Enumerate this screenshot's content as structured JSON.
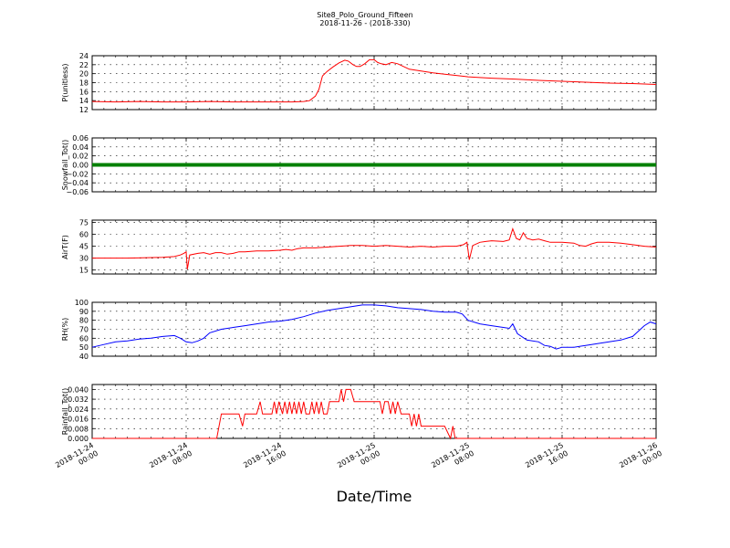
{
  "chart_data": {
    "type": "line",
    "title": "Site8_Polo_Ground_Fifteen",
    "subtitle": "2018-11-26 - (2018-330)",
    "xlabel": "Date/Time",
    "x_ticks": [
      "2018-11-24\n00:00",
      "2018-11-24\n08:00",
      "2018-11-24\n16:00",
      "2018-11-25\n00:00",
      "2018-11-25\n08:00",
      "2018-11-25\n16:00",
      "2018-11-26\n00:00"
    ],
    "x_range_hours": [
      0,
      48
    ],
    "grid": true,
    "panels": [
      {
        "ylabel": "P(unitless)",
        "ylim": [
          12,
          24
        ],
        "yticks": [
          "12",
          "14",
          "16",
          "18",
          "20",
          "22",
          "24"
        ],
        "color": "#ff0000",
        "series": [
          [
            0,
            13.8
          ],
          [
            2,
            13.7
          ],
          [
            4,
            13.8
          ],
          [
            6,
            13.7
          ],
          [
            8,
            13.7
          ],
          [
            10,
            13.8
          ],
          [
            12,
            13.7
          ],
          [
            14,
            13.7
          ],
          [
            16,
            13.7
          ],
          [
            17,
            13.7
          ],
          [
            18,
            13.8
          ],
          [
            18.5,
            14.0
          ],
          [
            19,
            15.0
          ],
          [
            19.3,
            16.5
          ],
          [
            19.6,
            19.5
          ],
          [
            20,
            20.5
          ],
          [
            20.5,
            21.5
          ],
          [
            21,
            22.4
          ],
          [
            21.5,
            23.0
          ],
          [
            21.8,
            22.8
          ],
          [
            22.2,
            22.0
          ],
          [
            22.5,
            21.6
          ],
          [
            22.8,
            21.6
          ],
          [
            23.2,
            22.2
          ],
          [
            23.6,
            23.1
          ],
          [
            24,
            23.1
          ],
          [
            24.3,
            22.5
          ],
          [
            24.6,
            22.2
          ],
          [
            25,
            22.0
          ],
          [
            25.5,
            22.5
          ],
          [
            26,
            22.2
          ],
          [
            26.5,
            21.6
          ],
          [
            27,
            21.0
          ],
          [
            28,
            20.6
          ],
          [
            29,
            20.2
          ],
          [
            30,
            19.9
          ],
          [
            31,
            19.6
          ],
          [
            32,
            19.3
          ],
          [
            34,
            19.0
          ],
          [
            36,
            18.8
          ],
          [
            38,
            18.5
          ],
          [
            40,
            18.3
          ],
          [
            42,
            18.1
          ],
          [
            44,
            17.9
          ],
          [
            46,
            17.8
          ],
          [
            48,
            17.6
          ]
        ]
      },
      {
        "ylabel": "Snowfall_Tot()",
        "ylim": [
          -0.06,
          0.06
        ],
        "yticks": [
          "−0.06",
          "−0.04",
          "−0.02",
          "0.00",
          "0.02",
          "0.04",
          "0.06"
        ],
        "color": "#008000",
        "series": [
          [
            0,
            0
          ],
          [
            48,
            0
          ]
        ]
      },
      {
        "ylabel": "AirT(F)",
        "ylim": [
          10,
          78
        ],
        "yticks": [
          "15",
          "30",
          "45",
          "60",
          "75"
        ],
        "color": "#ff0000",
        "series": [
          [
            0,
            30
          ],
          [
            3,
            30
          ],
          [
            6,
            31
          ],
          [
            7,
            32
          ],
          [
            7.5,
            34
          ],
          [
            7.8,
            36
          ],
          [
            8,
            38
          ],
          [
            8.1,
            16
          ],
          [
            8.3,
            34
          ],
          [
            9,
            36
          ],
          [
            9.5,
            37
          ],
          [
            10,
            35
          ],
          [
            10.5,
            37
          ],
          [
            11,
            37
          ],
          [
            11.5,
            35
          ],
          [
            12,
            36
          ],
          [
            12.5,
            38
          ],
          [
            13,
            38
          ],
          [
            14,
            39
          ],
          [
            15,
            39
          ],
          [
            16,
            40
          ],
          [
            16.5,
            41
          ],
          [
            17,
            40
          ],
          [
            17.5,
            42
          ],
          [
            18,
            43
          ],
          [
            19,
            43
          ],
          [
            20,
            44
          ],
          [
            21,
            45
          ],
          [
            22,
            46
          ],
          [
            23,
            46
          ],
          [
            24,
            45
          ],
          [
            25,
            46
          ],
          [
            26,
            45
          ],
          [
            27,
            44
          ],
          [
            28,
            45
          ],
          [
            29,
            44
          ],
          [
            30,
            45
          ],
          [
            31,
            45
          ],
          [
            31.6,
            47
          ],
          [
            31.9,
            50
          ],
          [
            32.1,
            28
          ],
          [
            32.4,
            46
          ],
          [
            33,
            50
          ],
          [
            33.5,
            51
          ],
          [
            34,
            52
          ],
          [
            35,
            51
          ],
          [
            35.5,
            53
          ],
          [
            35.8,
            67
          ],
          [
            36.1,
            55
          ],
          [
            36.4,
            53
          ],
          [
            36.7,
            62
          ],
          [
            37,
            55
          ],
          [
            37.5,
            53
          ],
          [
            38,
            54
          ],
          [
            38.5,
            52
          ],
          [
            39,
            50
          ],
          [
            40,
            50
          ],
          [
            41,
            49
          ],
          [
            41.5,
            46
          ],
          [
            42,
            45
          ],
          [
            42.5,
            48
          ],
          [
            43,
            50
          ],
          [
            44,
            50
          ],
          [
            45,
            49
          ],
          [
            46,
            47
          ],
          [
            47,
            45
          ],
          [
            48,
            44
          ]
        ]
      },
      {
        "ylabel": "RH(%)",
        "ylim": [
          40,
          100
        ],
        "yticks": [
          "40",
          "50",
          "60",
          "70",
          "80",
          "90",
          "100"
        ],
        "color": "#0000ff",
        "series": [
          [
            0,
            50
          ],
          [
            1,
            53
          ],
          [
            2,
            56
          ],
          [
            3,
            57
          ],
          [
            4,
            59
          ],
          [
            5,
            60
          ],
          [
            6,
            62
          ],
          [
            7,
            63
          ],
          [
            7.5,
            60
          ],
          [
            8,
            56
          ],
          [
            8.5,
            55
          ],
          [
            9,
            57
          ],
          [
            9.5,
            60
          ],
          [
            10,
            66
          ],
          [
            11,
            70
          ],
          [
            12,
            72
          ],
          [
            13,
            74
          ],
          [
            14,
            76
          ],
          [
            15,
            78
          ],
          [
            16,
            79
          ],
          [
            17,
            81
          ],
          [
            18,
            84
          ],
          [
            19,
            88
          ],
          [
            20,
            91
          ],
          [
            21,
            93
          ],
          [
            22,
            95
          ],
          [
            23,
            97
          ],
          [
            24,
            97
          ],
          [
            25,
            96
          ],
          [
            26,
            94
          ],
          [
            27,
            93
          ],
          [
            28,
            92
          ],
          [
            29,
            90
          ],
          [
            30,
            89
          ],
          [
            31,
            89
          ],
          [
            31.5,
            87
          ],
          [
            32,
            80
          ],
          [
            33,
            76
          ],
          [
            34,
            74
          ],
          [
            35,
            72
          ],
          [
            35.5,
            71
          ],
          [
            35.8,
            76
          ],
          [
            36.2,
            65
          ],
          [
            37,
            58
          ],
          [
            38,
            56
          ],
          [
            38.5,
            52
          ],
          [
            39,
            51
          ],
          [
            39.5,
            48
          ],
          [
            40,
            50
          ],
          [
            41,
            50
          ],
          [
            42,
            52
          ],
          [
            43,
            54
          ],
          [
            44,
            56
          ],
          [
            45,
            58
          ],
          [
            46,
            62
          ],
          [
            46.5,
            68
          ],
          [
            47,
            74
          ],
          [
            47.5,
            78
          ],
          [
            48,
            76
          ]
        ]
      },
      {
        "ylabel": "Rainfall_Tot()",
        "ylim": [
          0,
          0.044
        ],
        "yticks": [
          "0.000",
          "0.008",
          "0.016",
          "0.024",
          "0.032",
          "0.040"
        ],
        "color": "#ff0000",
        "series": [
          [
            0,
            0
          ],
          [
            10,
            0
          ],
          [
            10.6,
            0
          ],
          [
            11,
            0.02
          ],
          [
            12.5,
            0.02
          ],
          [
            12.8,
            0.01
          ],
          [
            13,
            0.02
          ],
          [
            14,
            0.02
          ],
          [
            14.3,
            0.03
          ],
          [
            14.5,
            0.02
          ],
          [
            15.3,
            0.02
          ],
          [
            15.5,
            0.03
          ],
          [
            15.7,
            0.02
          ],
          [
            15.9,
            0.03
          ],
          [
            16.2,
            0.02
          ],
          [
            16.4,
            0.03
          ],
          [
            16.6,
            0.02
          ],
          [
            16.8,
            0.03
          ],
          [
            17,
            0.02
          ],
          [
            17.2,
            0.03
          ],
          [
            17.4,
            0.02
          ],
          [
            17.6,
            0.03
          ],
          [
            17.8,
            0.02
          ],
          [
            18,
            0.03
          ],
          [
            18.2,
            0.02
          ],
          [
            18.5,
            0.02
          ],
          [
            18.7,
            0.03
          ],
          [
            18.9,
            0.02
          ],
          [
            19.1,
            0.03
          ],
          [
            19.3,
            0.02
          ],
          [
            19.5,
            0.03
          ],
          [
            19.7,
            0.02
          ],
          [
            20,
            0.02
          ],
          [
            20.2,
            0.03
          ],
          [
            21,
            0.03
          ],
          [
            21.2,
            0.04
          ],
          [
            21.4,
            0.03
          ],
          [
            21.6,
            0.04
          ],
          [
            22,
            0.04
          ],
          [
            22.3,
            0.03
          ],
          [
            23,
            0.03
          ],
          [
            24,
            0.03
          ],
          [
            24.5,
            0.03
          ],
          [
            24.7,
            0.02
          ],
          [
            24.9,
            0.03
          ],
          [
            25.2,
            0.03
          ],
          [
            25.4,
            0.02
          ],
          [
            25.6,
            0.03
          ],
          [
            25.8,
            0.02
          ],
          [
            26,
            0.03
          ],
          [
            26.3,
            0.02
          ],
          [
            27,
            0.02
          ],
          [
            27.2,
            0.01
          ],
          [
            27.4,
            0.02
          ],
          [
            27.6,
            0.01
          ],
          [
            27.8,
            0.02
          ],
          [
            28,
            0.01
          ],
          [
            29,
            0.01
          ],
          [
            30,
            0.01
          ],
          [
            30.5,
            0
          ],
          [
            30.7,
            0.01
          ],
          [
            30.9,
            0
          ],
          [
            48,
            0
          ]
        ]
      }
    ]
  }
}
